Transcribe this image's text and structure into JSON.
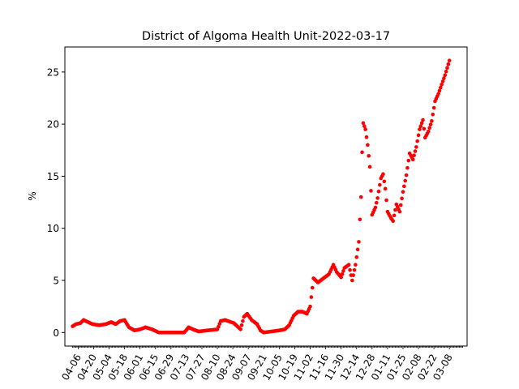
{
  "chart_data": {
    "type": "scatter",
    "title": "District of Algoma Health Unit-2022-03-17",
    "ylabel": "%",
    "xlabel": "",
    "ylim": [
      -1.3,
      27.4
    ],
    "yticks": [
      0,
      5,
      10,
      15,
      20,
      25
    ],
    "xtick_labels": [
      "04-06",
      "04-20",
      "05-04",
      "05-18",
      "06-01",
      "06-15",
      "06-29",
      "07-13",
      "07-27",
      "08-10",
      "08-24",
      "09-07",
      "09-21",
      "10-05",
      "10-19",
      "11-02",
      "11-16",
      "11-30",
      "12-14",
      "12-28",
      "01-11",
      "01-25",
      "02-08",
      "02-22",
      "03-08"
    ],
    "x_start": "2021-04-01",
    "x_end": "2022-03-17",
    "marker_color": "#ff0000",
    "grid": false,
    "anchors": [
      [
        "2021-04-01",
        0.6
      ],
      [
        "2021-04-04",
        0.8
      ],
      [
        "2021-04-08",
        0.9
      ],
      [
        "2021-04-11",
        1.2
      ],
      [
        "2021-04-15",
        1.0
      ],
      [
        "2021-04-19",
        0.8
      ],
      [
        "2021-04-25",
        0.7
      ],
      [
        "2021-05-01",
        0.8
      ],
      [
        "2021-05-06",
        1.0
      ],
      [
        "2021-05-10",
        0.8
      ],
      [
        "2021-05-14",
        1.1
      ],
      [
        "2021-05-18",
        1.2
      ],
      [
        "2021-05-22",
        0.5
      ],
      [
        "2021-05-27",
        0.2
      ],
      [
        "2021-06-01",
        0.3
      ],
      [
        "2021-06-06",
        0.5
      ],
      [
        "2021-06-12",
        0.3
      ],
      [
        "2021-06-18",
        0.0
      ],
      [
        "2021-07-11",
        0.0
      ],
      [
        "2021-07-15",
        0.5
      ],
      [
        "2021-07-19",
        0.3
      ],
      [
        "2021-07-24",
        0.1
      ],
      [
        "2021-08-01",
        0.2
      ],
      [
        "2021-08-10",
        0.3
      ],
      [
        "2021-08-13",
        1.1
      ],
      [
        "2021-08-17",
        1.2
      ],
      [
        "2021-08-25",
        0.9
      ],
      [
        "2021-08-31",
        0.3
      ],
      [
        "2021-09-03",
        1.5
      ],
      [
        "2021-09-06",
        1.8
      ],
      [
        "2021-09-10",
        1.2
      ],
      [
        "2021-09-15",
        0.8
      ],
      [
        "2021-09-18",
        0.2
      ],
      [
        "2021-09-21",
        0.0
      ],
      [
        "2021-10-05",
        0.2
      ],
      [
        "2021-10-10",
        0.3
      ],
      [
        "2021-10-14",
        0.7
      ],
      [
        "2021-10-18",
        1.6
      ],
      [
        "2021-10-22",
        2.0
      ],
      [
        "2021-10-26",
        2.0
      ],
      [
        "2021-10-30",
        1.8
      ],
      [
        "2021-11-02",
        2.5
      ],
      [
        "2021-11-05",
        5.2
      ],
      [
        "2021-11-09",
        4.8
      ],
      [
        "2021-11-14",
        5.2
      ],
      [
        "2021-11-19",
        5.6
      ],
      [
        "2021-11-23",
        6.5
      ],
      [
        "2021-11-26",
        5.8
      ],
      [
        "2021-11-30",
        5.3
      ],
      [
        "2021-12-03",
        6.2
      ],
      [
        "2021-12-07",
        6.5
      ],
      [
        "2021-12-10",
        5.0
      ],
      [
        "2021-12-13",
        6.5
      ],
      [
        "2021-12-16",
        8.7
      ],
      [
        "2021-12-18",
        13.0
      ],
      [
        "2021-12-19",
        17.3
      ],
      [
        "2021-12-20",
        20.1
      ],
      [
        "2021-12-22",
        19.5
      ],
      [
        "2021-12-24",
        18.0
      ],
      [
        "2021-12-26",
        15.9
      ],
      [
        "2021-12-28",
        11.3
      ],
      [
        "2021-12-31",
        12.0
      ],
      [
        "2022-01-02",
        12.9
      ],
      [
        "2022-01-05",
        14.8
      ],
      [
        "2022-01-07",
        15.2
      ],
      [
        "2022-01-09",
        13.8
      ],
      [
        "2022-01-11",
        11.6
      ],
      [
        "2022-01-14",
        11.0
      ],
      [
        "2022-01-16",
        10.7
      ],
      [
        "2022-01-19",
        12.3
      ],
      [
        "2022-01-22",
        11.6
      ],
      [
        "2022-01-25",
        13.5
      ],
      [
        "2022-01-28",
        15.1
      ],
      [
        "2022-01-31",
        17.2
      ],
      [
        "2022-02-03",
        16.6
      ],
      [
        "2022-02-06",
        17.8
      ],
      [
        "2022-02-09",
        19.5
      ],
      [
        "2022-02-12",
        20.4
      ],
      [
        "2022-02-14",
        18.7
      ],
      [
        "2022-02-17",
        19.3
      ],
      [
        "2022-02-20",
        20.3
      ],
      [
        "2022-02-23",
        22.2
      ],
      [
        "2022-02-26",
        22.9
      ],
      [
        "2022-03-01",
        23.8
      ],
      [
        "2022-03-04",
        24.7
      ],
      [
        "2022-03-06",
        25.4
      ],
      [
        "2022-03-08",
        26.1
      ]
    ]
  }
}
